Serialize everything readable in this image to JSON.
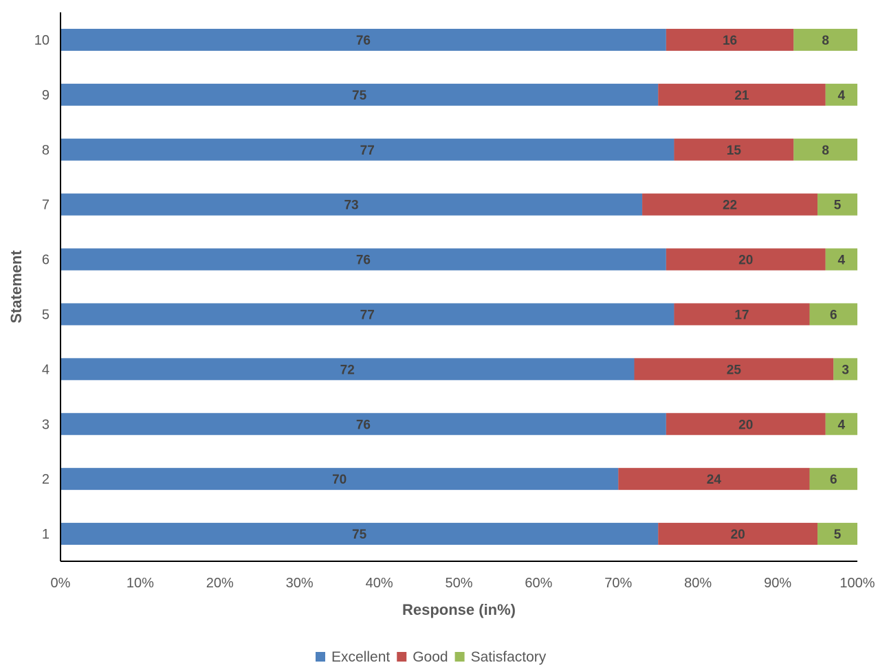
{
  "chart_data": {
    "type": "bar",
    "orientation": "horizontal",
    "stacked": "percent",
    "categories": [
      "1",
      "2",
      "3",
      "4",
      "5",
      "6",
      "7",
      "8",
      "9",
      "10"
    ],
    "series": [
      {
        "name": "Excellent",
        "color": "#4f81bd",
        "values": [
          75,
          70,
          76,
          72,
          77,
          76,
          73,
          77,
          75,
          76
        ]
      },
      {
        "name": "Good",
        "color": "#c0504d",
        "values": [
          20,
          24,
          20,
          25,
          17,
          20,
          22,
          15,
          21,
          16
        ]
      },
      {
        "name": "Satisfactory",
        "color": "#9bbb59",
        "values": [
          5,
          6,
          4,
          3,
          6,
          4,
          5,
          8,
          4,
          8
        ]
      }
    ],
    "xlabel": "Response (in%)",
    "ylabel": "Statement",
    "xlim": [
      0,
      100
    ],
    "xticks": [
      "0%",
      "10%",
      "20%",
      "30%",
      "40%",
      "50%",
      "60%",
      "70%",
      "80%",
      "90%",
      "100%"
    ],
    "grid": false,
    "legend_position": "bottom"
  }
}
